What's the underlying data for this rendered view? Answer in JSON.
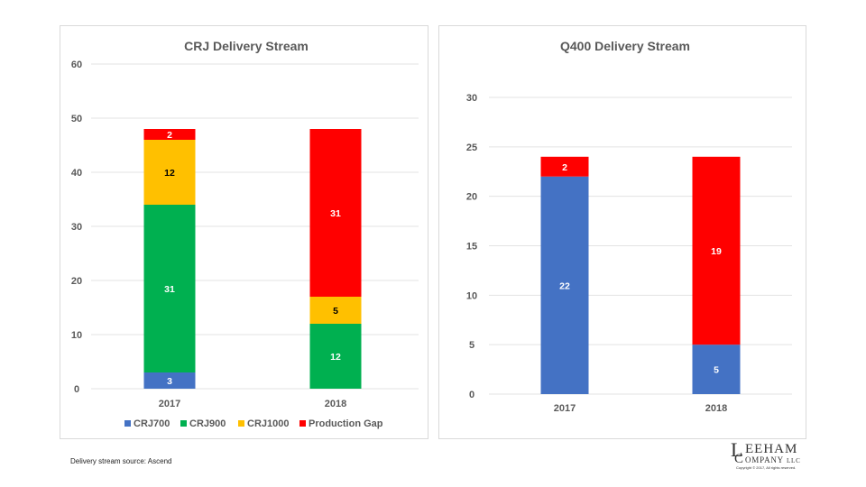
{
  "footer": {
    "source_note": "Delivery stream source: Ascend"
  },
  "logo": {
    "initial_l": "L",
    "line1": "EEHAM",
    "initial_c": "C",
    "line2": "OMPANY",
    "suffix": "LLC",
    "copyright": "Copyright © 2017, All rights reserved."
  },
  "colors": {
    "CRJ700": "#4472C4",
    "CRJ900": "#00B050",
    "CRJ1000": "#FFC000",
    "Production Gap": "#FF0000"
  },
  "chart_data": [
    {
      "type": "bar",
      "stacked": true,
      "title": "CRJ Delivery Stream",
      "xlabel": "",
      "ylabel": "",
      "categories": [
        "2017",
        "2018"
      ],
      "ylim": [
        0,
        60
      ],
      "yticks": [
        0,
        10,
        20,
        30,
        40,
        50,
        60
      ],
      "grid": true,
      "legend": "bottom",
      "series": [
        {
          "name": "CRJ700",
          "color": "#4472C4",
          "label_color": "#ffffff",
          "values": [
            3,
            0
          ]
        },
        {
          "name": "CRJ900",
          "color": "#00B050",
          "label_color": "#ffffff",
          "values": [
            31,
            12
          ]
        },
        {
          "name": "CRJ1000",
          "color": "#FFC000",
          "label_color": "#000000",
          "values": [
            12,
            5
          ]
        },
        {
          "name": "Production Gap",
          "color": "#FF0000",
          "label_color": "#ffffff",
          "values": [
            2,
            31
          ]
        }
      ]
    },
    {
      "type": "bar",
      "stacked": true,
      "title": "Q400 Delivery Stream",
      "xlabel": "",
      "ylabel": "",
      "categories": [
        "2017",
        "2018"
      ],
      "ylim": [
        0,
        30
      ],
      "yticks": [
        0,
        5,
        10,
        15,
        20,
        25,
        30
      ],
      "grid": true,
      "legend": "none",
      "series": [
        {
          "name": "Q400",
          "color": "#4472C4",
          "label_color": "#ffffff",
          "values": [
            22,
            5
          ]
        },
        {
          "name": "Production Gap",
          "color": "#FF0000",
          "label_color": "#ffffff",
          "values": [
            2,
            19
          ]
        }
      ]
    }
  ]
}
